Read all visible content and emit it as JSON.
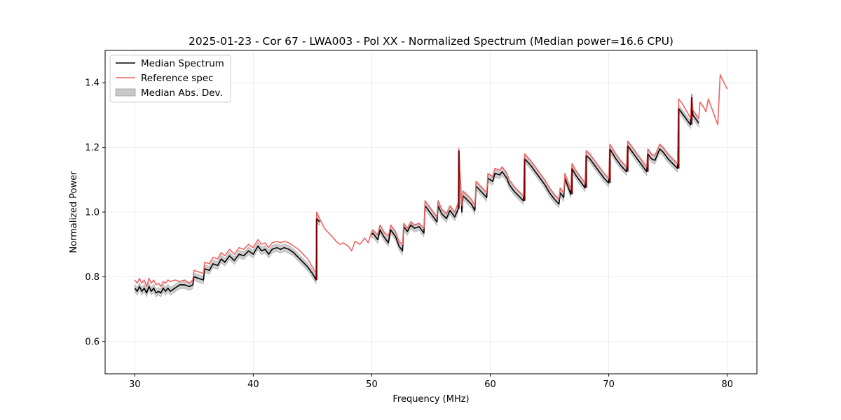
{
  "chart_data": {
    "type": "line",
    "title": "2025-01-23 - Cor 67 - LWA003 - Pol XX - Normalized Spectrum (Median power=16.6 CPU)",
    "xlabel": "Frequency (MHz)",
    "ylabel": "Normalized Power",
    "xlim": [
      27.5,
      82.5
    ],
    "ylim": [
      0.5,
      1.5
    ],
    "xticks": [
      30,
      40,
      50,
      60,
      70,
      80
    ],
    "yticks": [
      0.6,
      0.8,
      1.0,
      1.2,
      1.4
    ],
    "grid": true,
    "legend_position": "upper-left",
    "legend": [
      "Median Spectrum",
      "Reference spec",
      "Median Abs. Dev."
    ],
    "colors": {
      "median": "#000000",
      "reference": "#f06464",
      "mad_fill": "#c8c8c8",
      "mad_edge": "#aaaaaa",
      "overlap": "#7a0000"
    },
    "series": [
      {
        "name": "Reference spec",
        "x": [
          30.0,
          30.2,
          30.4,
          30.6,
          30.8,
          31.0,
          31.2,
          31.4,
          31.6,
          31.8,
          32.0,
          32.2,
          32.4,
          32.6,
          32.8,
          33.0,
          33.4,
          33.8,
          34.2,
          34.6,
          34.9,
          35.0,
          35.4,
          35.8,
          35.9,
          36.3,
          36.6,
          37.0,
          37.3,
          37.6,
          38.0,
          38.4,
          38.8,
          39.2,
          39.6,
          40.0,
          40.4,
          40.7,
          41.0,
          41.3,
          41.6,
          42.0,
          42.3,
          42.6,
          43.0,
          43.4,
          43.8,
          44.2,
          44.6,
          45.0,
          45.3,
          45.35,
          45.6,
          46.0,
          46.5,
          47.0,
          47.3,
          47.6,
          48.0,
          48.3,
          48.6,
          49.0,
          49.4,
          49.7,
          50.0,
          50.1,
          50.5,
          50.7,
          51.0,
          51.4,
          51.6,
          52.0,
          52.3,
          52.6,
          52.7,
          53.0,
          53.3,
          53.6,
          54.0,
          54.4,
          54.5,
          55.0,
          55.5,
          55.6,
          55.9,
          56.3,
          56.6,
          57.0,
          57.3,
          57.35,
          57.6,
          57.7,
          58.0,
          58.4,
          58.7,
          58.8,
          59.2,
          59.7,
          59.8,
          60.2,
          60.4,
          60.8,
          61.0,
          61.4,
          61.6,
          62.0,
          62.4,
          62.8,
          62.9,
          63.4,
          63.8,
          64.2,
          64.6,
          65.0,
          65.4,
          65.8,
          65.9,
          66.2,
          66.3,
          66.6,
          66.8,
          66.9,
          67.2,
          67.6,
          68.0,
          68.1,
          68.4,
          68.8,
          69.2,
          69.6,
          70.0,
          70.1,
          70.6,
          71.0,
          71.5,
          71.6,
          72.0,
          72.4,
          72.8,
          73.2,
          73.3,
          73.6,
          73.9,
          74.3,
          74.6,
          75.0,
          75.4,
          75.8,
          75.9,
          76.2,
          76.6,
          76.9,
          77.0,
          77.1,
          77.4,
          77.6,
          77.7,
          78.0,
          78.2,
          78.4,
          78.6,
          78.8,
          79.0,
          79.2,
          79.4,
          79.6,
          79.8,
          80.0
        ],
        "values": [
          0.79,
          0.78,
          0.795,
          0.78,
          0.79,
          0.77,
          0.795,
          0.78,
          0.79,
          0.775,
          0.78,
          0.77,
          0.785,
          0.78,
          0.79,
          0.785,
          0.79,
          0.785,
          0.79,
          0.78,
          0.79,
          0.82,
          0.815,
          0.81,
          0.845,
          0.84,
          0.86,
          0.855,
          0.875,
          0.865,
          0.885,
          0.87,
          0.89,
          0.885,
          0.9,
          0.89,
          0.915,
          0.9,
          0.905,
          0.89,
          0.905,
          0.91,
          0.905,
          0.91,
          0.905,
          0.895,
          0.885,
          0.87,
          0.855,
          0.83,
          0.81,
          1.0,
          0.98,
          0.95,
          0.93,
          0.91,
          0.9,
          0.905,
          0.895,
          0.88,
          0.91,
          0.9,
          0.92,
          0.905,
          0.94,
          0.945,
          0.93,
          0.96,
          0.94,
          0.925,
          0.96,
          0.94,
          0.91,
          0.9,
          0.965,
          0.95,
          0.97,
          0.96,
          0.965,
          0.95,
          1.035,
          1.01,
          0.985,
          1.035,
          1.01,
          0.995,
          1.02,
          1.0,
          1.03,
          1.195,
          1.02,
          1.065,
          1.055,
          1.04,
          1.02,
          1.095,
          1.08,
          1.06,
          1.12,
          1.11,
          1.135,
          1.13,
          1.14,
          1.12,
          1.1,
          1.08,
          1.065,
          1.05,
          1.18,
          1.16,
          1.14,
          1.12,
          1.1,
          1.075,
          1.055,
          1.04,
          1.075,
          1.06,
          1.12,
          1.09,
          1.07,
          1.15,
          1.13,
          1.11,
          1.09,
          1.19,
          1.18,
          1.16,
          1.14,
          1.12,
          1.105,
          1.21,
          1.18,
          1.16,
          1.14,
          1.22,
          1.2,
          1.18,
          1.16,
          1.14,
          1.195,
          1.18,
          1.175,
          1.21,
          1.2,
          1.18,
          1.165,
          1.15,
          1.35,
          1.335,
          1.31,
          1.29,
          1.365,
          1.315,
          1.3,
          1.29,
          1.34,
          1.325,
          1.31,
          1.35,
          1.33,
          1.31,
          1.29,
          1.27,
          1.425,
          1.41,
          1.395,
          1.38
        ]
      },
      {
        "name": "Median Spectrum",
        "x": [
          30.0,
          30.2,
          30.4,
          30.6,
          30.8,
          31.0,
          31.2,
          31.4,
          31.6,
          31.8,
          32.0,
          32.2,
          32.4,
          32.6,
          32.8,
          33.0,
          33.4,
          33.8,
          34.2,
          34.6,
          34.9,
          35.0,
          35.4,
          35.8,
          35.9,
          36.3,
          36.6,
          37.0,
          37.3,
          37.6,
          38.0,
          38.4,
          38.8,
          39.2,
          39.6,
          40.0,
          40.4,
          40.7,
          41.0,
          41.3,
          41.6,
          42.0,
          42.3,
          42.6,
          43.0,
          43.4,
          43.8,
          44.2,
          44.6,
          45.0,
          45.3,
          45.35,
          45.6,
          50.0,
          50.1,
          50.5,
          50.7,
          51.0,
          51.4,
          51.6,
          52.0,
          52.3,
          52.6,
          52.7,
          53.0,
          53.3,
          53.6,
          54.0,
          54.4,
          54.5,
          55.0,
          55.5,
          55.6,
          55.9,
          56.3,
          56.6,
          57.0,
          57.3,
          57.35,
          57.6,
          57.7,
          58.0,
          58.4,
          58.7,
          58.8,
          59.2,
          59.7,
          59.8,
          60.2,
          60.4,
          60.8,
          61.0,
          61.4,
          61.6,
          62.0,
          62.4,
          62.8,
          62.9,
          63.4,
          63.8,
          64.2,
          64.6,
          65.0,
          65.4,
          65.8,
          65.9,
          66.2,
          66.3,
          66.6,
          66.8,
          66.9,
          67.2,
          67.6,
          68.0,
          68.1,
          68.4,
          68.8,
          69.2,
          69.6,
          70.0,
          70.1,
          70.6,
          71.0,
          71.5,
          71.6,
          72.0,
          72.4,
          72.8,
          73.2,
          73.3,
          73.6,
          73.9,
          74.3,
          74.6,
          75.0,
          75.4,
          75.8,
          75.9,
          76.2,
          76.6,
          76.9,
          77.0,
          77.1,
          77.4,
          77.6
        ],
        "values": [
          0.765,
          0.755,
          0.77,
          0.755,
          0.765,
          0.75,
          0.77,
          0.755,
          0.765,
          0.75,
          0.755,
          0.75,
          0.765,
          0.755,
          0.765,
          0.755,
          0.765,
          0.775,
          0.775,
          0.77,
          0.775,
          0.8,
          0.795,
          0.79,
          0.825,
          0.82,
          0.84,
          0.835,
          0.855,
          0.845,
          0.865,
          0.85,
          0.87,
          0.865,
          0.88,
          0.87,
          0.895,
          0.88,
          0.885,
          0.87,
          0.885,
          0.89,
          0.885,
          0.89,
          0.885,
          0.875,
          0.86,
          0.845,
          0.83,
          0.81,
          0.79,
          0.98,
          0.97,
          0.93,
          0.935,
          0.915,
          0.945,
          0.925,
          0.905,
          0.945,
          0.925,
          0.895,
          0.88,
          0.955,
          0.94,
          0.96,
          0.95,
          0.955,
          0.935,
          1.02,
          0.995,
          0.97,
          1.02,
          0.995,
          0.98,
          1.005,
          0.985,
          1.01,
          1.19,
          1.0,
          1.05,
          1.04,
          1.025,
          1.005,
          1.08,
          1.065,
          1.045,
          1.105,
          1.095,
          1.12,
          1.115,
          1.125,
          1.105,
          1.085,
          1.065,
          1.05,
          1.035,
          1.165,
          1.145,
          1.125,
          1.105,
          1.085,
          1.06,
          1.04,
          1.025,
          1.06,
          1.045,
          1.105,
          1.075,
          1.055,
          1.135,
          1.115,
          1.095,
          1.075,
          1.175,
          1.165,
          1.145,
          1.125,
          1.105,
          1.09,
          1.195,
          1.165,
          1.145,
          1.125,
          1.205,
          1.185,
          1.165,
          1.145,
          1.125,
          1.18,
          1.165,
          1.16,
          1.195,
          1.185,
          1.165,
          1.15,
          1.135,
          1.32,
          1.305,
          1.285,
          1.27,
          1.355,
          1.3,
          1.285,
          1.275
        ]
      }
    ],
    "mad_halfwidth": 0.012
  }
}
